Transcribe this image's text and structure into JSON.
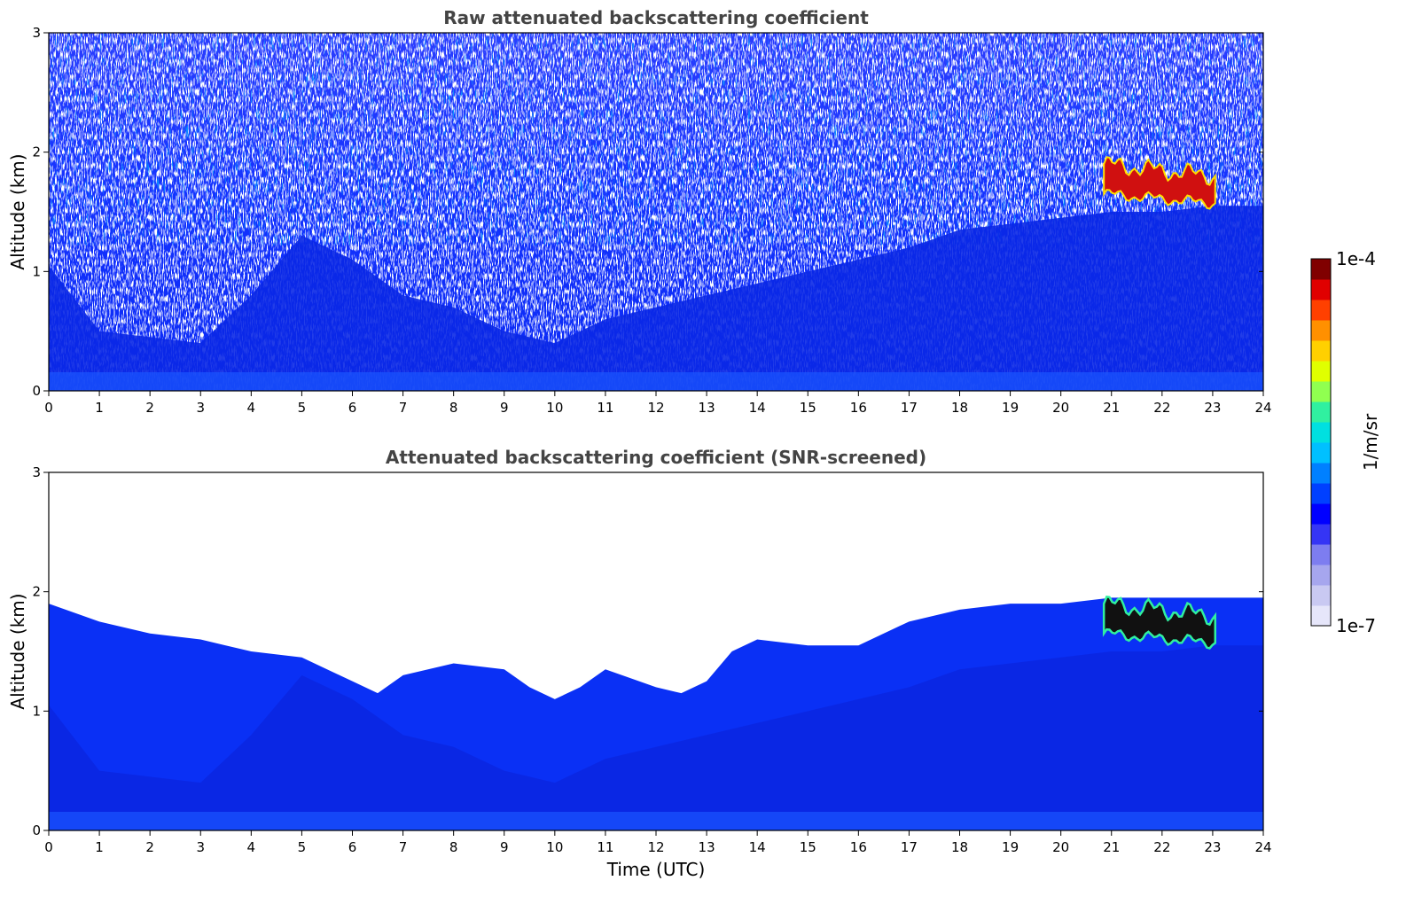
{
  "chart_data": [
    {
      "type": "heatmap",
      "title": "Raw attenuated backscattering coefficient",
      "xlabel": "",
      "ylabel": "Altitude (km)",
      "xlim": [
        0,
        24
      ],
      "ylim": [
        0,
        3
      ],
      "xticks": [
        "0",
        "1",
        "2",
        "3",
        "4",
        "5",
        "6",
        "7",
        "8",
        "9",
        "10",
        "11",
        "12",
        "13",
        "14",
        "15",
        "16",
        "17",
        "18",
        "19",
        "20",
        "21",
        "22",
        "23",
        "24"
      ],
      "yticks": [
        "0",
        "1",
        "2",
        "3"
      ],
      "screened": false,
      "boundary_layer_top_km": [
        [
          0,
          1.05
        ],
        [
          1,
          0.5
        ],
        [
          2,
          0.45
        ],
        [
          3,
          0.4
        ],
        [
          4,
          0.8
        ],
        [
          5,
          1.3
        ],
        [
          6,
          1.1
        ],
        [
          7,
          0.8
        ],
        [
          8,
          0.7
        ],
        [
          9,
          0.5
        ],
        [
          10,
          0.4
        ],
        [
          11,
          0.6
        ],
        [
          12,
          0.7
        ],
        [
          13,
          0.8
        ],
        [
          14,
          0.9
        ],
        [
          15,
          1.0
        ],
        [
          16,
          1.1
        ],
        [
          17,
          1.2
        ],
        [
          18,
          1.35
        ],
        [
          19,
          1.4
        ],
        [
          20,
          1.45
        ],
        [
          21,
          1.5
        ],
        [
          22,
          1.5
        ],
        [
          23,
          1.55
        ],
        [
          24,
          1.55
        ]
      ],
      "cloud_layer": {
        "x_start": 20.85,
        "x_end": 23.05,
        "base_km": 1.65,
        "top_km": 1.9
      }
    },
    {
      "type": "heatmap",
      "title": "Attenuated backscattering coefficient (SNR-screened)",
      "xlabel": "Time (UTC)",
      "ylabel": "Altitude (km)",
      "xlim": [
        0,
        24
      ],
      "ylim": [
        0,
        3
      ],
      "xticks": [
        "0",
        "1",
        "2",
        "3",
        "4",
        "5",
        "6",
        "7",
        "8",
        "9",
        "10",
        "11",
        "12",
        "13",
        "14",
        "15",
        "16",
        "17",
        "18",
        "19",
        "20",
        "21",
        "22",
        "23",
        "24"
      ],
      "yticks": [
        "0",
        "1",
        "2",
        "3"
      ],
      "screened": true,
      "signal_top_km": [
        [
          0,
          1.9
        ],
        [
          1,
          1.75
        ],
        [
          2,
          1.65
        ],
        [
          3,
          1.6
        ],
        [
          4,
          1.5
        ],
        [
          5,
          1.45
        ],
        [
          5.5,
          1.35
        ],
        [
          6,
          1.25
        ],
        [
          6.5,
          1.15
        ],
        [
          7,
          1.3
        ],
        [
          8,
          1.4
        ],
        [
          9,
          1.35
        ],
        [
          9.5,
          1.2
        ],
        [
          10,
          1.1
        ],
        [
          10.5,
          1.2
        ],
        [
          11,
          1.35
        ],
        [
          12,
          1.2
        ],
        [
          12.5,
          1.15
        ],
        [
          13,
          1.25
        ],
        [
          13.5,
          1.5
        ],
        [
          14,
          1.6
        ],
        [
          15,
          1.55
        ],
        [
          16,
          1.55
        ],
        [
          16.5,
          1.65
        ],
        [
          17,
          1.75
        ],
        [
          18,
          1.85
        ],
        [
          19,
          1.9
        ],
        [
          20,
          1.9
        ],
        [
          21,
          1.95
        ],
        [
          22,
          1.95
        ],
        [
          23,
          1.95
        ],
        [
          24,
          1.95
        ]
      ],
      "cloud_layer": {
        "x_start": 20.85,
        "x_end": 23.05,
        "base_km": 1.65,
        "top_km": 1.9
      }
    }
  ],
  "colorbar": {
    "label": "1/m/sr",
    "max_label": "1e-4",
    "min_label": "1e-7",
    "colors": [
      "#e6e6fa",
      "#c9c9f2",
      "#a6a6ee",
      "#7d7df0",
      "#3535f5",
      "#0000ff",
      "#0040ff",
      "#0080ff",
      "#00c0ff",
      "#00e0e0",
      "#30f0a0",
      "#90ff50",
      "#e0ff00",
      "#ffd000",
      "#ff9000",
      "#ff4000",
      "#e00000",
      "#800000"
    ]
  }
}
